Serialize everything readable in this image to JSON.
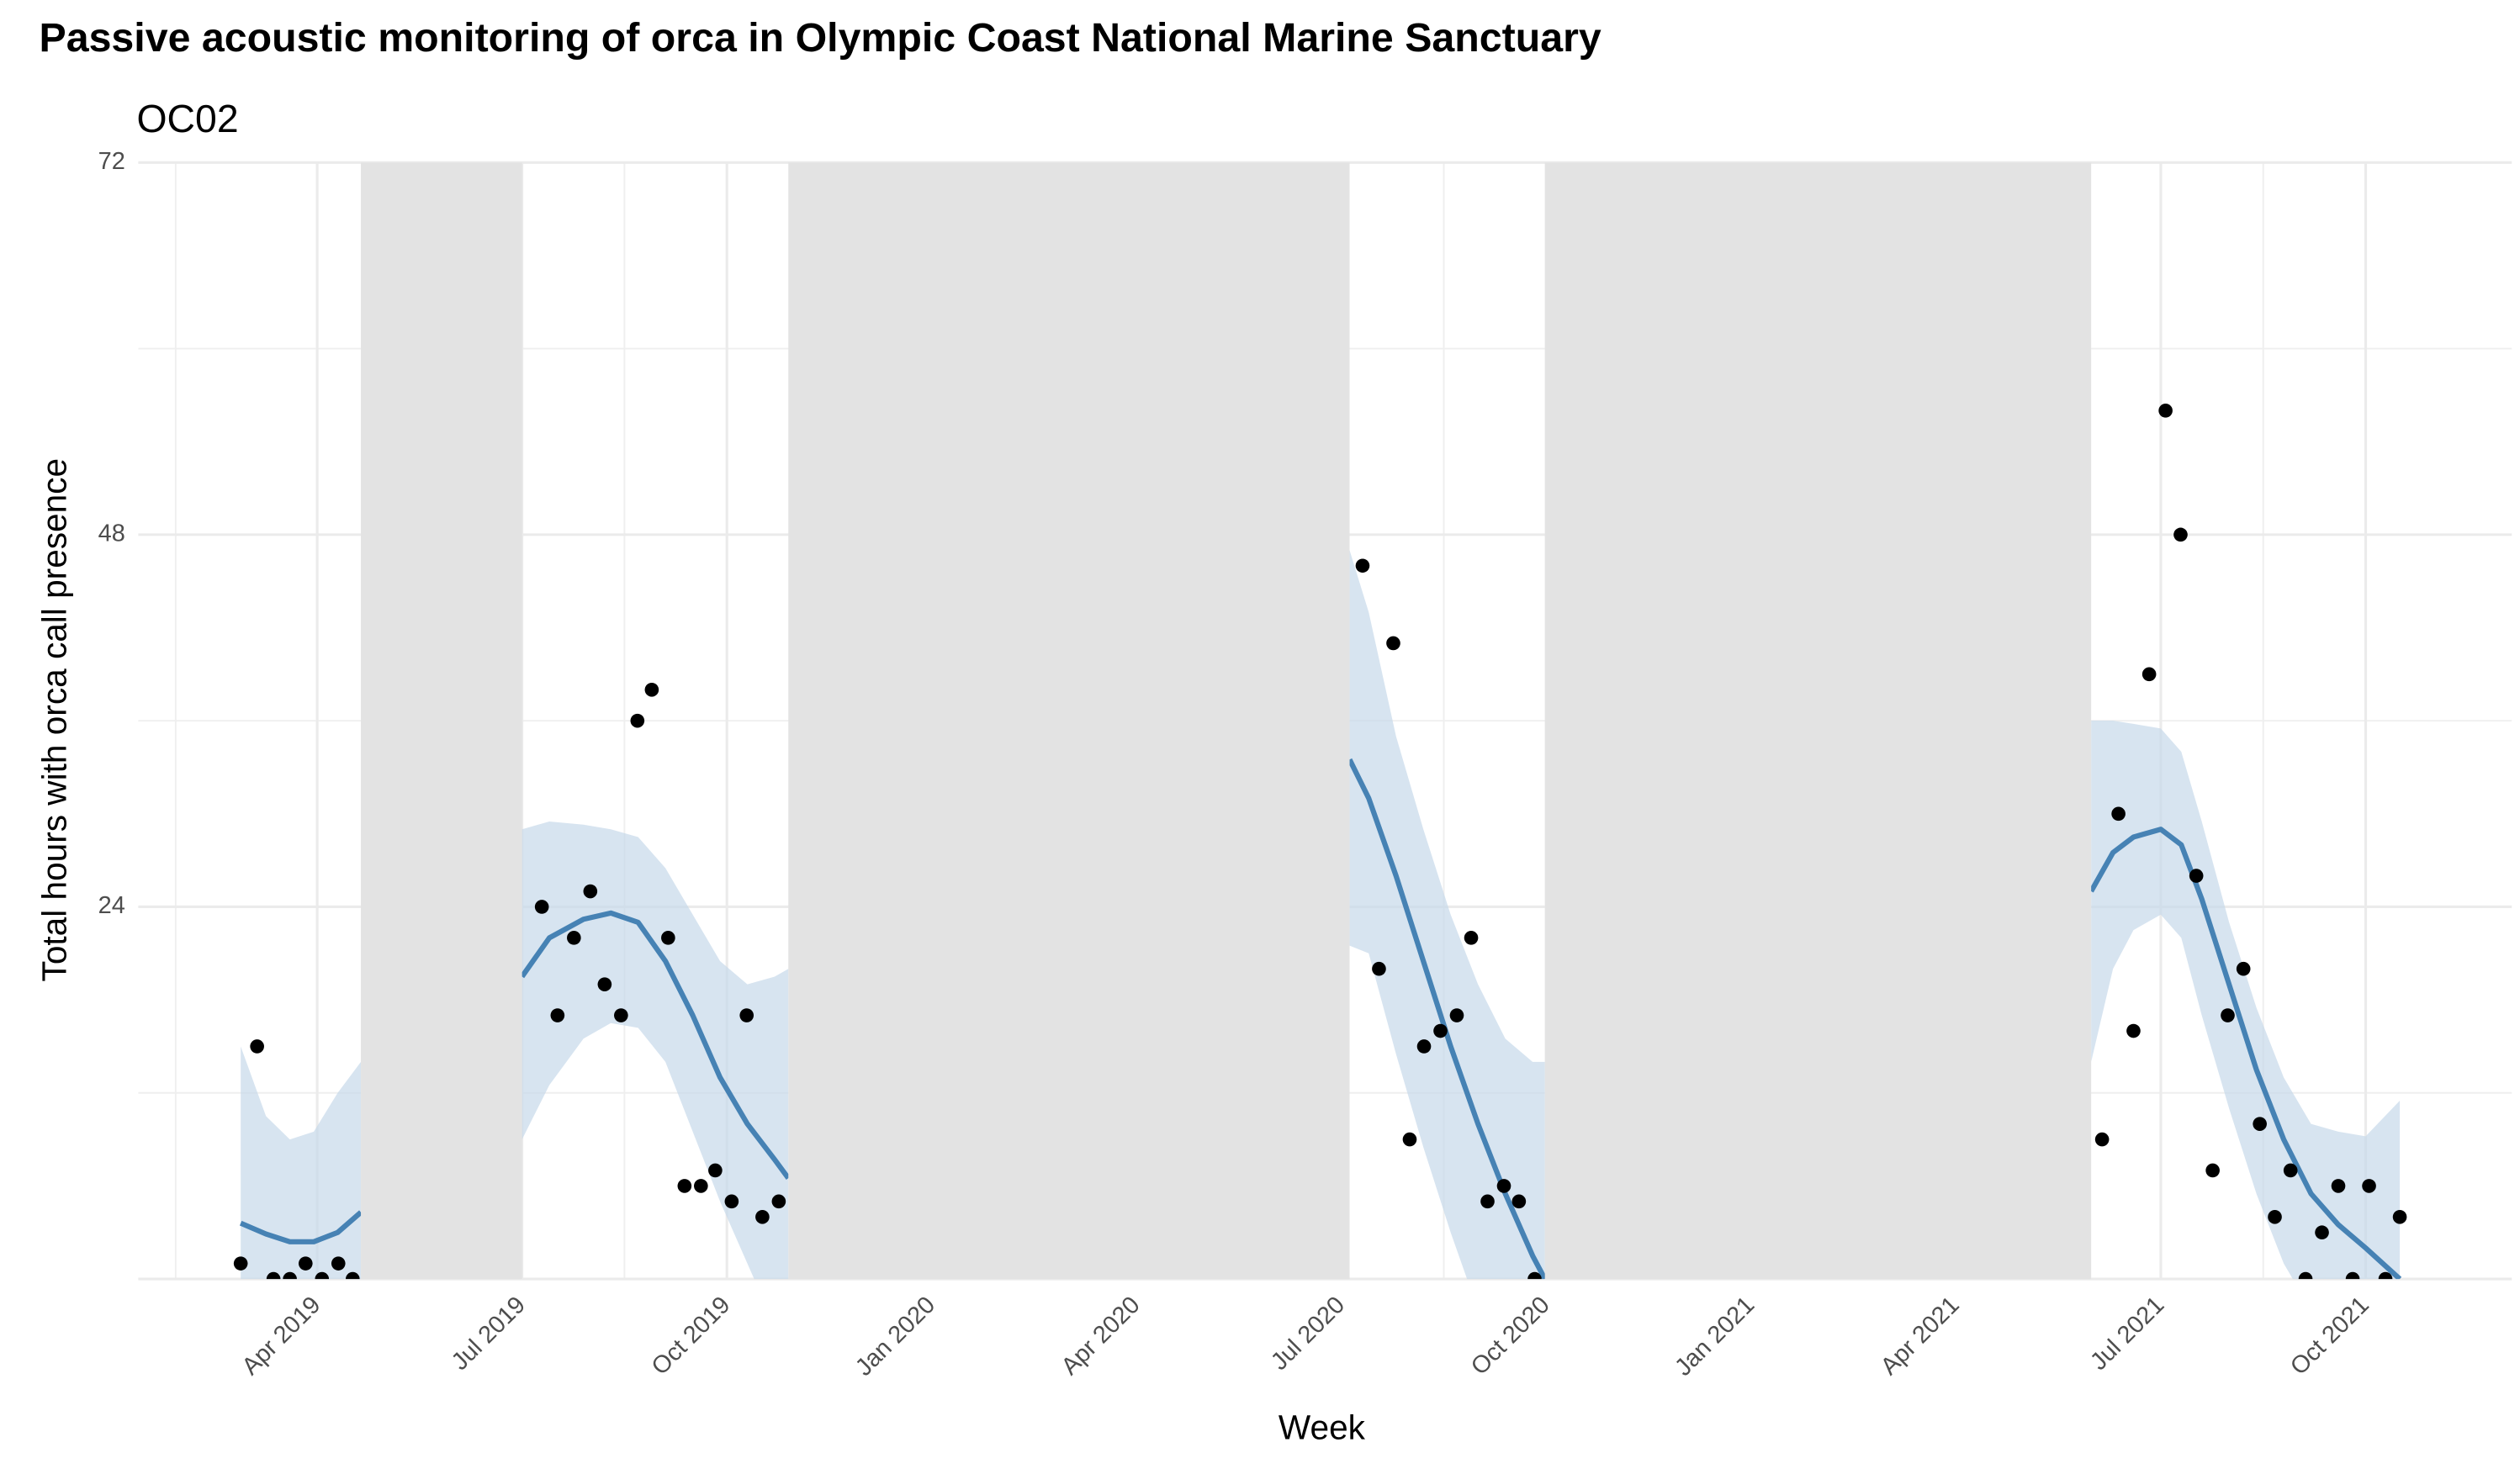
{
  "chart_data": {
    "type": "scatter-smooth",
    "title": "Passive acoustic monitoring of orca in Olympic Coast National Marine Sanctuary",
    "subtitle": "OC02",
    "x_label": "Week",
    "y_label": "Total hours with orca call presence",
    "xlim": [
      0.38,
      35.14
    ],
    "ylim": [
      0,
      72
    ],
    "xticks": [
      {
        "value": 3,
        "label": "Apr 2019"
      },
      {
        "value": 6,
        "label": "Jul 2019"
      },
      {
        "value": 9,
        "label": "Oct 2019"
      },
      {
        "value": 12,
        "label": "Jan 2020"
      },
      {
        "value": 15,
        "label": "Apr 2020"
      },
      {
        "value": 18,
        "label": "Jul 2020"
      },
      {
        "value": 21,
        "label": "Oct 2020"
      },
      {
        "value": 24,
        "label": "Jan 2021"
      },
      {
        "value": 27,
        "label": "Apr 2021"
      },
      {
        "value": 30,
        "label": "Jul 2021"
      },
      {
        "value": 33,
        "label": "Oct 2021"
      }
    ],
    "yticks": [
      24,
      48,
      72
    ],
    "grid": true,
    "shaded_periods": [
      [
        3.64,
        6.0
      ],
      [
        9.9,
        18.12
      ],
      [
        20.98,
        28.98
      ]
    ],
    "shade_color": "#e3e3e3",
    "points": {
      "color": "#000000",
      "x": [
        1.88,
        2.12,
        2.36,
        2.6,
        2.83,
        3.07,
        3.31,
        3.52,
        6.29,
        6.52,
        6.76,
        7.0,
        7.21,
        7.45,
        7.69,
        7.9,
        8.14,
        8.38,
        8.62,
        8.83,
        9.07,
        9.29,
        9.52,
        9.76,
        18.31,
        18.55,
        18.76,
        19.0,
        19.21,
        19.45,
        19.69,
        19.9,
        20.14,
        20.38,
        20.6,
        20.83,
        29.14,
        29.38,
        29.6,
        29.83,
        30.07,
        30.29,
        30.52,
        30.76,
        30.98,
        31.21,
        31.45,
        31.67,
        31.9,
        32.12,
        32.36,
        32.6,
        32.81,
        33.05,
        33.29,
        33.5
      ],
      "values": [
        1,
        15,
        0,
        0,
        1,
        0,
        1,
        0,
        24,
        17,
        22,
        25,
        19,
        17,
        36,
        38,
        22,
        6,
        6,
        7,
        5,
        17,
        4,
        5,
        46,
        20,
        41,
        9,
        15,
        16,
        17,
        22,
        5,
        6,
        5,
        0,
        9,
        30,
        16,
        39,
        56,
        48,
        26,
        7,
        17,
        20,
        10,
        4,
        7,
        0,
        3,
        6,
        0,
        6,
        0,
        4
      ]
    },
    "smooth": {
      "color": "#4682b4",
      "band_color": "#c6d8ea",
      "x": [
        1.88,
        2.25,
        2.6,
        2.95,
        3.3,
        3.64,
        null,
        6.0,
        6.4,
        6.9,
        7.3,
        7.7,
        8.1,
        8.5,
        8.9,
        9.3,
        9.7,
        9.9,
        null,
        18.12,
        18.4,
        18.8,
        19.2,
        19.6,
        20.0,
        20.4,
        20.8,
        20.98,
        null,
        28.98,
        29.3,
        29.6,
        30.0,
        30.3,
        30.6,
        31.0,
        31.4,
        31.8,
        32.2,
        32.6,
        33.0,
        33.5
      ],
      "values": [
        3.6,
        2.9,
        2.4,
        2.4,
        3.0,
        4.3,
        null,
        19.5,
        22,
        23.2,
        23.6,
        23,
        20.5,
        17,
        13,
        10,
        7.7,
        6.5,
        null,
        33.5,
        31,
        26,
        20.5,
        15,
        10,
        5.5,
        1.5,
        0,
        null,
        25,
        27.5,
        28.5,
        29,
        28,
        24.5,
        19,
        13.5,
        9,
        5.5,
        3.5,
        2,
        0
      ],
      "upper": [
        15,
        10.5,
        9,
        9.5,
        12,
        14,
        null,
        29,
        29.5,
        29.3,
        29,
        28.5,
        26.5,
        23.5,
        20.5,
        19,
        19.5,
        20,
        null,
        47,
        43,
        35,
        29,
        23.5,
        19,
        15.5,
        14,
        14,
        null,
        36,
        36,
        35.8,
        35.5,
        34,
        29.5,
        23,
        17.5,
        13,
        10,
        9.5,
        9.2,
        11.5
      ],
      "lower": [
        -3,
        -3,
        -3,
        -3,
        -2,
        -1,
        null,
        9,
        12.5,
        15.5,
        16.5,
        16.2,
        14,
        9.5,
        5,
        1,
        -3,
        -4,
        null,
        21.5,
        21,
        14.5,
        8.5,
        3,
        -2,
        -6,
        -10,
        -12,
        null,
        14,
        20,
        22.5,
        23.5,
        22,
        17,
        11,
        5.5,
        1,
        -2,
        -5,
        -7,
        -11
      ]
    }
  }
}
